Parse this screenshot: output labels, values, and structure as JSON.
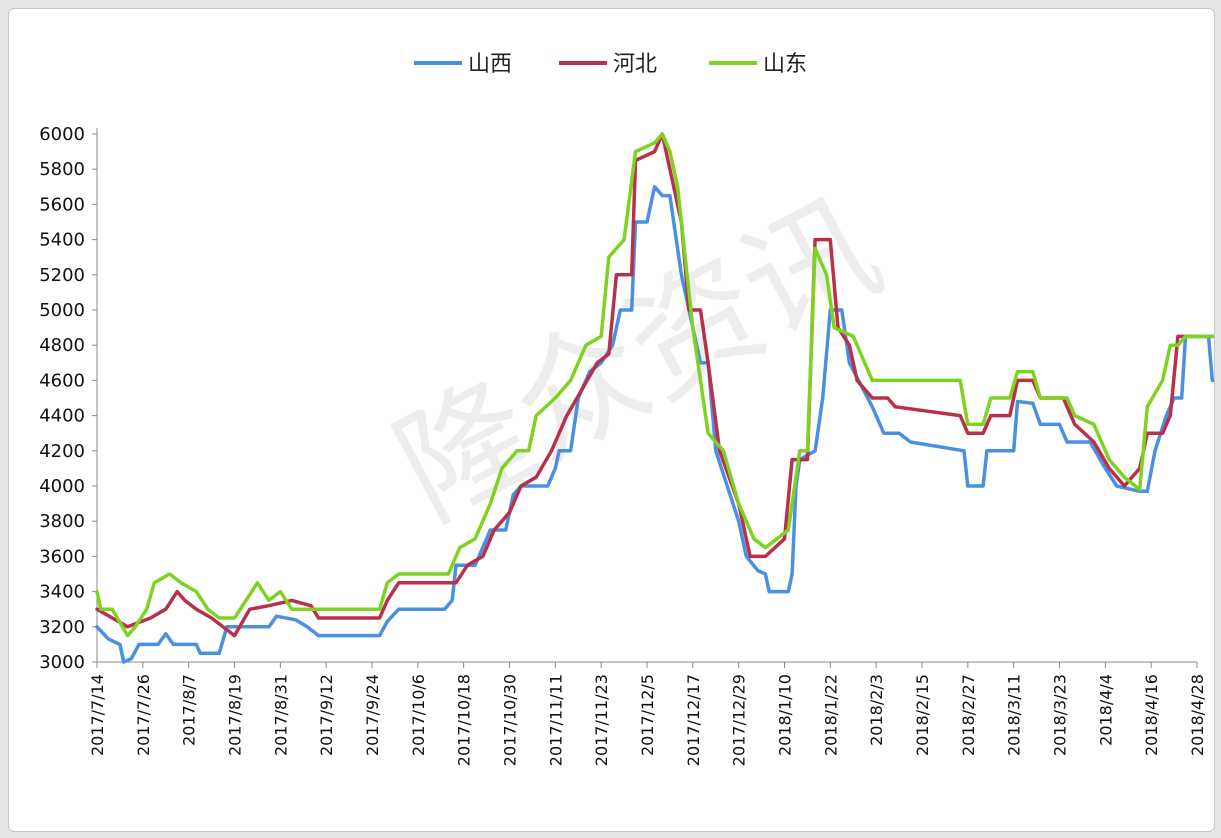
{
  "chart_data": {
    "type": "line",
    "title": "",
    "xlabel": "",
    "ylabel": "",
    "ylim": [
      3000,
      6000
    ],
    "y_ticks": [
      3000,
      3200,
      3400,
      3600,
      3800,
      4000,
      4200,
      4400,
      4600,
      4800,
      5000,
      5200,
      5400,
      5600,
      5800,
      6000
    ],
    "x_tick_labels": [
      "2017/7/14",
      "2017/7/26",
      "2017/8/7",
      "2017/8/19",
      "2017/8/31",
      "2017/9/12",
      "2017/9/24",
      "2017/10/6",
      "2017/10/18",
      "2017/10/30",
      "2017/11/11",
      "2017/11/23",
      "2017/12/5",
      "2017/12/17",
      "2017/12/29",
      "2018/1/10",
      "2018/1/22",
      "2018/2/3",
      "2018/2/15",
      "2018/2/27",
      "2018/3/11",
      "2018/3/23",
      "2018/4/4",
      "2018/4/16",
      "2018/4/28"
    ],
    "x_range": [
      "2017-07-14",
      "2018-04-28"
    ],
    "legend_position": "top",
    "grid": false,
    "watermark": "隆众资讯",
    "series": [
      {
        "name": "山西",
        "color": "#4a90e2",
        "points": [
          [
            "2017-07-14",
            3200
          ],
          [
            "2017-07-17",
            3130
          ],
          [
            "2017-07-20",
            3100
          ],
          [
            "2017-07-21",
            3000
          ],
          [
            "2017-07-23",
            3020
          ],
          [
            "2017-07-25",
            3100
          ],
          [
            "2017-07-30",
            3100
          ],
          [
            "2017-08-01",
            3160
          ],
          [
            "2017-08-03",
            3100
          ],
          [
            "2017-08-09",
            3100
          ],
          [
            "2017-08-10",
            3050
          ],
          [
            "2017-08-15",
            3050
          ],
          [
            "2017-08-17",
            3200
          ],
          [
            "2017-08-28",
            3200
          ],
          [
            "2017-08-30",
            3260
          ],
          [
            "2017-09-04",
            3240
          ],
          [
            "2017-09-07",
            3200
          ],
          [
            "2017-09-10",
            3150
          ],
          [
            "2017-09-26",
            3150
          ],
          [
            "2017-09-28",
            3230
          ],
          [
            "2017-10-01",
            3300
          ],
          [
            "2017-10-13",
            3300
          ],
          [
            "2017-10-15",
            3350
          ],
          [
            "2017-10-16",
            3550
          ],
          [
            "2017-10-21",
            3550
          ],
          [
            "2017-10-22",
            3600
          ],
          [
            "2017-10-25",
            3750
          ],
          [
            "2017-10-29",
            3750
          ],
          [
            "2017-10-31",
            3950
          ],
          [
            "2017-11-02",
            4000
          ],
          [
            "2017-11-09",
            4000
          ],
          [
            "2017-11-11",
            4100
          ],
          [
            "2017-11-12",
            4200
          ],
          [
            "2017-11-15",
            4200
          ],
          [
            "2017-11-17",
            4500
          ],
          [
            "2017-11-20",
            4650
          ],
          [
            "2017-11-23",
            4700
          ],
          [
            "2017-11-26",
            4800
          ],
          [
            "2017-11-28",
            5000
          ],
          [
            "2017-12-01",
            5000
          ],
          [
            "2017-12-02",
            5500
          ],
          [
            "2017-12-05",
            5500
          ],
          [
            "2017-12-07",
            5700
          ],
          [
            "2017-12-09",
            5650
          ],
          [
            "2017-12-11",
            5650
          ],
          [
            "2017-12-14",
            5200
          ],
          [
            "2017-12-17",
            4900
          ],
          [
            "2017-12-19",
            4700
          ],
          [
            "2017-12-21",
            4700
          ],
          [
            "2017-12-23",
            4200
          ],
          [
            "2017-12-26",
            4000
          ],
          [
            "2017-12-29",
            3800
          ],
          [
            "2017-12-31",
            3600
          ],
          [
            "2018-01-03",
            3520
          ],
          [
            "2018-01-05",
            3500
          ],
          [
            "2018-01-06",
            3400
          ],
          [
            "2018-01-11",
            3400
          ],
          [
            "2018-01-12",
            3500
          ],
          [
            "2018-01-13",
            4000
          ],
          [
            "2018-01-14",
            4150
          ],
          [
            "2018-01-18",
            4200
          ],
          [
            "2018-01-20",
            4500
          ],
          [
            "2018-01-22",
            5000
          ],
          [
            "2018-01-25",
            5000
          ],
          [
            "2018-01-27",
            4700
          ],
          [
            "2018-02-02",
            4450
          ],
          [
            "2018-02-05",
            4300
          ],
          [
            "2018-02-09",
            4300
          ],
          [
            "2018-02-12",
            4250
          ],
          [
            "2018-02-26",
            4200
          ],
          [
            "2018-02-27",
            4000
          ],
          [
            "2018-03-03",
            4000
          ],
          [
            "2018-03-04",
            4200
          ],
          [
            "2018-03-11",
            4200
          ],
          [
            "2018-03-12",
            4480
          ],
          [
            "2018-03-16",
            4470
          ],
          [
            "2018-03-18",
            4350
          ],
          [
            "2018-03-23",
            4350
          ],
          [
            "2018-03-25",
            4250
          ],
          [
            "2018-03-31",
            4250
          ],
          [
            "2018-04-04",
            4100
          ],
          [
            "2018-04-07",
            4000
          ],
          [
            "2018-04-13",
            3970
          ],
          [
            "2018-04-15",
            3970
          ],
          [
            "2018-04-17",
            4200
          ],
          [
            "2018-04-20",
            4400
          ],
          [
            "2018-04-22",
            4500
          ],
          [
            "2018-04-24",
            4500
          ],
          [
            "2018-04-25",
            4850
          ],
          [
            "2018-04-30",
            4850
          ],
          [
            "2018-05-01",
            4850
          ],
          [
            "2018-05-02",
            4600
          ],
          [
            "2018-05-04",
            4600
          ]
        ]
      },
      {
        "name": "河北",
        "color": "#b8304a",
        "points": [
          [
            "2017-07-14",
            3300
          ],
          [
            "2017-07-18",
            3250
          ],
          [
            "2017-07-22",
            3200
          ],
          [
            "2017-07-28",
            3250
          ],
          [
            "2017-08-01",
            3300
          ],
          [
            "2017-08-04",
            3400
          ],
          [
            "2017-08-06",
            3350
          ],
          [
            "2017-08-09",
            3300
          ],
          [
            "2017-08-13",
            3250
          ],
          [
            "2017-08-16",
            3200
          ],
          [
            "2017-08-19",
            3150
          ],
          [
            "2017-08-23",
            3300
          ],
          [
            "2017-08-28",
            3320
          ],
          [
            "2017-09-03",
            3350
          ],
          [
            "2017-09-08",
            3320
          ],
          [
            "2017-09-10",
            3250
          ],
          [
            "2017-09-14",
            3250
          ],
          [
            "2017-09-26",
            3250
          ],
          [
            "2017-09-28",
            3350
          ],
          [
            "2017-10-01",
            3450
          ],
          [
            "2017-10-16",
            3450
          ],
          [
            "2017-10-19",
            3550
          ],
          [
            "2017-10-23",
            3600
          ],
          [
            "2017-10-26",
            3750
          ],
          [
            "2017-10-30",
            3850
          ],
          [
            "2017-11-02",
            4000
          ],
          [
            "2017-11-06",
            4050
          ],
          [
            "2017-11-10",
            4200
          ],
          [
            "2017-11-14",
            4400
          ],
          [
            "2017-11-18",
            4550
          ],
          [
            "2017-11-22",
            4700
          ],
          [
            "2017-11-25",
            4750
          ],
          [
            "2017-11-27",
            5200
          ],
          [
            "2017-12-01",
            5200
          ],
          [
            "2017-12-02",
            5850
          ],
          [
            "2017-12-07",
            5900
          ],
          [
            "2017-12-09",
            6000
          ],
          [
            "2017-12-11",
            5800
          ],
          [
            "2017-12-14",
            5500
          ],
          [
            "2017-12-16",
            5000
          ],
          [
            "2017-12-19",
            5000
          ],
          [
            "2017-12-21",
            4700
          ],
          [
            "2017-12-24",
            4200
          ],
          [
            "2017-12-29",
            3900
          ],
          [
            "2018-01-01",
            3600
          ],
          [
            "2018-01-05",
            3600
          ],
          [
            "2018-01-10",
            3700
          ],
          [
            "2018-01-12",
            4150
          ],
          [
            "2018-01-16",
            4150
          ],
          [
            "2018-01-18",
            5400
          ],
          [
            "2018-01-22",
            5400
          ],
          [
            "2018-01-24",
            4900
          ],
          [
            "2018-01-27",
            4800
          ],
          [
            "2018-01-29",
            4600
          ],
          [
            "2018-02-02",
            4500
          ],
          [
            "2018-02-06",
            4500
          ],
          [
            "2018-02-08",
            4450
          ],
          [
            "2018-02-25",
            4400
          ],
          [
            "2018-02-27",
            4300
          ],
          [
            "2018-03-03",
            4300
          ],
          [
            "2018-03-05",
            4400
          ],
          [
            "2018-03-10",
            4400
          ],
          [
            "2018-03-12",
            4600
          ],
          [
            "2018-03-16",
            4600
          ],
          [
            "2018-03-18",
            4500
          ],
          [
            "2018-03-24",
            4500
          ],
          [
            "2018-03-27",
            4350
          ],
          [
            "2018-04-01",
            4250
          ],
          [
            "2018-04-05",
            4100
          ],
          [
            "2018-04-09",
            4000
          ],
          [
            "2018-04-13",
            4100
          ],
          [
            "2018-04-15",
            4300
          ],
          [
            "2018-04-19",
            4300
          ],
          [
            "2018-04-21",
            4400
          ],
          [
            "2018-04-23",
            4850
          ],
          [
            "2018-04-26",
            4850
          ],
          [
            "2018-05-04",
            4850
          ]
        ]
      },
      {
        "name": "山东",
        "color": "#7ed321",
        "points": [
          [
            "2017-07-14",
            3400
          ],
          [
            "2017-07-15",
            3300
          ],
          [
            "2017-07-18",
            3300
          ],
          [
            "2017-07-22",
            3150
          ],
          [
            "2017-07-24",
            3200
          ],
          [
            "2017-07-27",
            3300
          ],
          [
            "2017-07-29",
            3450
          ],
          [
            "2017-08-02",
            3500
          ],
          [
            "2017-08-05",
            3450
          ],
          [
            "2017-08-09",
            3400
          ],
          [
            "2017-08-12",
            3300
          ],
          [
            "2017-08-15",
            3250
          ],
          [
            "2017-08-19",
            3250
          ],
          [
            "2017-08-22",
            3350
          ],
          [
            "2017-08-25",
            3450
          ],
          [
            "2017-08-28",
            3350
          ],
          [
            "2017-08-31",
            3400
          ],
          [
            "2017-09-03",
            3300
          ],
          [
            "2017-09-08",
            3300
          ],
          [
            "2017-09-26",
            3300
          ],
          [
            "2017-09-28",
            3450
          ],
          [
            "2017-10-01",
            3500
          ],
          [
            "2017-10-14",
            3500
          ],
          [
            "2017-10-17",
            3650
          ],
          [
            "2017-10-21",
            3700
          ],
          [
            "2017-10-25",
            3900
          ],
          [
            "2017-10-28",
            4100
          ],
          [
            "2017-11-01",
            4200
          ],
          [
            "2017-11-04",
            4200
          ],
          [
            "2017-11-06",
            4400
          ],
          [
            "2017-11-11",
            4500
          ],
          [
            "2017-11-15",
            4600
          ],
          [
            "2017-11-19",
            4800
          ],
          [
            "2017-11-23",
            4850
          ],
          [
            "2017-11-25",
            5300
          ],
          [
            "2017-11-29",
            5400
          ],
          [
            "2017-12-02",
            5900
          ],
          [
            "2017-12-07",
            5950
          ],
          [
            "2017-12-09",
            6000
          ],
          [
            "2017-12-11",
            5900
          ],
          [
            "2017-12-13",
            5700
          ],
          [
            "2017-12-15",
            5300
          ],
          [
            "2017-12-17",
            4900
          ],
          [
            "2017-12-19",
            4600
          ],
          [
            "2017-12-21",
            4300
          ],
          [
            "2017-12-25",
            4200
          ],
          [
            "2017-12-29",
            3900
          ],
          [
            "2018-01-02",
            3700
          ],
          [
            "2018-01-05",
            3650
          ],
          [
            "2018-01-08",
            3700
          ],
          [
            "2018-01-11",
            3750
          ],
          [
            "2018-01-14",
            4200
          ],
          [
            "2018-01-16",
            4200
          ],
          [
            "2018-01-18",
            5350
          ],
          [
            "2018-01-21",
            5200
          ],
          [
            "2018-01-23",
            4900
          ],
          [
            "2018-01-28",
            4850
          ],
          [
            "2018-01-31",
            4700
          ],
          [
            "2018-02-02",
            4600
          ],
          [
            "2018-02-25",
            4600
          ],
          [
            "2018-02-27",
            4350
          ],
          [
            "2018-03-03",
            4350
          ],
          [
            "2018-03-05",
            4500
          ],
          [
            "2018-03-10",
            4500
          ],
          [
            "2018-03-12",
            4650
          ],
          [
            "2018-03-16",
            4650
          ],
          [
            "2018-03-18",
            4500
          ],
          [
            "2018-03-25",
            4500
          ],
          [
            "2018-03-27",
            4400
          ],
          [
            "2018-04-01",
            4350
          ],
          [
            "2018-04-05",
            4150
          ],
          [
            "2018-04-09",
            4050
          ],
          [
            "2018-04-13",
            3980
          ],
          [
            "2018-04-15",
            4450
          ],
          [
            "2018-04-19",
            4600
          ],
          [
            "2018-04-21",
            4800
          ],
          [
            "2018-04-23",
            4800
          ],
          [
            "2018-04-25",
            4850
          ],
          [
            "2018-05-04",
            4850
          ]
        ]
      }
    ]
  }
}
